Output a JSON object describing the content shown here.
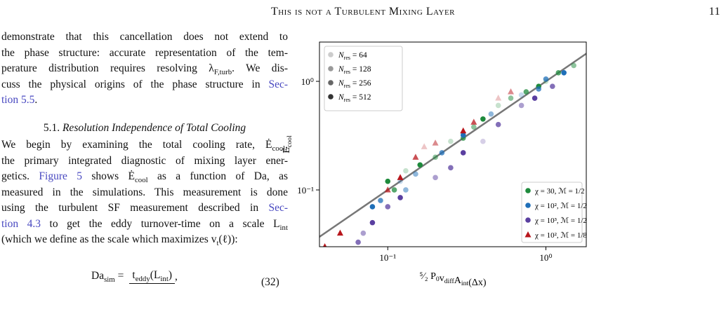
{
  "header": {
    "title": "This is not a Turbulent Mixing Layer",
    "page": 11
  },
  "body": {
    "paragraph_1": {
      "lines": [
        [
          {
            "t": "demonstrate that this cancellation does not extend to"
          }
        ],
        [
          {
            "t": "the phase structure: accurate representation of the tem-"
          }
        ],
        [
          {
            "t": "perature distribution requires resolving λ",
            "sub": "F,turb"
          },
          {
            "t": ". We dis-"
          }
        ],
        [
          {
            "t": "cuss the physical origins of the phase structure in "
          },
          {
            "t": "Sec-",
            "link": true
          }
        ],
        [
          {
            "t": "tion 5.5",
            "link": true
          },
          {
            "t": "."
          }
        ]
      ]
    },
    "section_heading": {
      "number": "5.1.",
      "title": "Resolution Independence of Total Cooling"
    },
    "paragraph_2": {
      "lines": [
        [
          {
            "t": "We begin by examining the total cooling rate, Ė",
            "sub": "cool"
          },
          {
            "t": ","
          }
        ],
        [
          {
            "t": "the primary integrated diagnostic of mixing layer ener-"
          }
        ],
        [
          {
            "t": "getics. "
          },
          {
            "t": "Figure 5",
            "link": true
          },
          {
            "t": " shows Ė",
            "sub": "cool"
          },
          {
            "t": " as a function of Da, as"
          }
        ],
        [
          {
            "t": "measured in the simulations. This measurement is done"
          }
        ],
        [
          {
            "t": "using the turbulent SF measurement described in "
          },
          {
            "t": "Sec-",
            "link": true
          }
        ],
        [
          {
            "t": "tion 4.3",
            "link": true
          },
          {
            "t": " to get the eddy turnover-time on a scale L",
            "sub": "int"
          }
        ],
        [
          {
            "t": "(which we define as the scale which maximizes v",
            "sub": "t"
          },
          {
            "t": "(ℓ)):"
          }
        ]
      ]
    },
    "equation": {
      "lhs": [
        {
          "t": "Da",
          "sub": "sim"
        },
        {
          "t": " ="
        }
      ],
      "numerator": [
        {
          "t": "t",
          "sub": "eddy"
        },
        {
          "t": "(L",
          "sub": "int"
        },
        {
          "t": ")"
        }
      ],
      "trailing": ",",
      "number": "(32)"
    }
  },
  "chart_data": {
    "type": "scatter",
    "log_x": true,
    "log_y": true,
    "identity_line": true,
    "identity_color": "#777777",
    "xlabel": [
      {
        "t": "⁵⁄₂ P",
        "sub": "0"
      },
      {
        "t": "v",
        "sub": "diff"
      },
      {
        "t": "A",
        "sub": "int"
      },
      {
        "t": "(Δx)"
      }
    ],
    "ylabel": [
      {
        "t": "Ė",
        "sub": "cool"
      }
    ],
    "xlim": [
      0.037,
      1.8
    ],
    "ylim": [
      0.03,
      2.3
    ],
    "xticks": [
      {
        "value": 0.1,
        "label": "10⁻¹"
      },
      {
        "value": 1,
        "label": "10⁰"
      }
    ],
    "yticks": [
      {
        "value": 0.1,
        "label": "10⁻¹"
      },
      {
        "value": 1,
        "label": "10⁰"
      }
    ],
    "resolution_legend": {
      "corner": "upper left",
      "color": "#333333",
      "entries": [
        {
          "symbol": "N",
          "sub": "res",
          "text": " = 64",
          "value": 64
        },
        {
          "symbol": "N",
          "sub": "res",
          "text": " = 128",
          "value": 128
        },
        {
          "symbol": "N",
          "sub": "res",
          "text": " = 256",
          "value": 256
        },
        {
          "symbol": "N",
          "sub": "res",
          "text": " = 512",
          "value": 512
        }
      ]
    },
    "legend": "lower right",
    "series": [
      {
        "name": "χ = 30, ℳ = 1/2",
        "color": "#1e8a3c",
        "marker": "circle",
        "x": [
          0.1,
          0.13,
          0.11,
          0.2,
          0.3,
          0.4,
          0.5,
          0.6,
          0.75,
          0.9,
          1.0,
          1.2,
          1.5,
          0.16,
          0.25,
          0.35
        ],
        "values": [
          0.12,
          0.15,
          0.1,
          0.2,
          0.3,
          0.45,
          0.6,
          0.7,
          0.8,
          0.9,
          1.0,
          1.2,
          1.4,
          0.17,
          0.28,
          0.38
        ],
        "resolution": [
          512,
          64,
          256,
          128,
          256,
          512,
          64,
          128,
          256,
          512,
          64,
          256,
          128,
          512,
          64,
          128
        ]
      },
      {
        "name": "χ = 10², ℳ = 1/2",
        "color": "#1f6fb8",
        "marker": "circle",
        "x": [
          0.08,
          0.09,
          0.12,
          0.15,
          0.22,
          0.3,
          0.45,
          0.7,
          1.0,
          1.3,
          0.13,
          0.9
        ],
        "values": [
          0.07,
          0.08,
          0.12,
          0.14,
          0.22,
          0.32,
          0.5,
          0.75,
          1.05,
          1.2,
          0.1,
          0.85
        ],
        "resolution": [
          512,
          256,
          64,
          128,
          256,
          512,
          128,
          64,
          256,
          512,
          128,
          256
        ]
      },
      {
        "name": "χ = 10³, ℳ = 1/2",
        "color": "#5a3fa0",
        "marker": "circle",
        "x": [
          0.065,
          0.07,
          0.08,
          0.1,
          0.12,
          0.2,
          0.25,
          0.3,
          0.4,
          0.5,
          0.7,
          0.85,
          1.1
        ],
        "values": [
          0.033,
          0.04,
          0.05,
          0.07,
          0.085,
          0.13,
          0.16,
          0.22,
          0.28,
          0.4,
          0.6,
          0.7,
          0.9
        ],
        "resolution": [
          256,
          128,
          512,
          256,
          512,
          128,
          256,
          512,
          64,
          256,
          128,
          512,
          256
        ]
      },
      {
        "name": "χ = 10², ℳ = 1/8",
        "color": "#b8161c",
        "marker": "triangle",
        "x": [
          0.04,
          0.05,
          0.1,
          0.12,
          0.17,
          0.2,
          0.3,
          0.35,
          0.5,
          0.6,
          0.15
        ],
        "values": [
          0.03,
          0.04,
          0.1,
          0.13,
          0.25,
          0.27,
          0.35,
          0.42,
          0.7,
          0.8,
          0.2
        ],
        "resolution": [
          512,
          512,
          256,
          512,
          64,
          128,
          512,
          256,
          64,
          128,
          256
        ]
      }
    ]
  }
}
